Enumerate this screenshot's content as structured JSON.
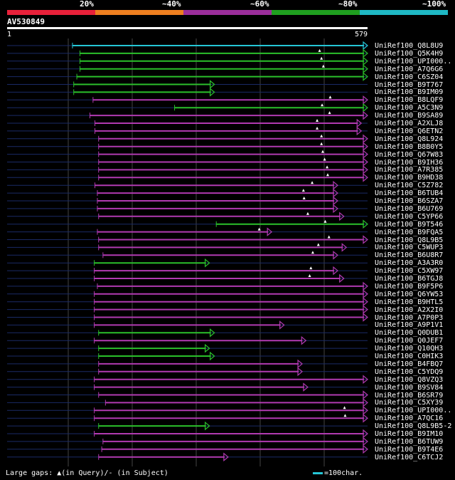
{
  "scale": {
    "ticks": [
      "20%",
      "~40%",
      "~60%",
      "~80%",
      "~100%"
    ],
    "colors": [
      "#e8213a",
      "#ee7f20",
      "#9b2e9b",
      "#1f9e1f",
      "#1fb8c4"
    ]
  },
  "query": {
    "name": "AV530849",
    "start": "1",
    "end": "579",
    "length": 579
  },
  "colors": {
    "blue": "#25c6d6",
    "green": "#2bc02b",
    "purple": "#b13ab1",
    "line": "#1a2a66",
    "grid": "#444444"
  },
  "hits": [
    {
      "name": "UniRef100_Q8L8U9",
      "s": 105,
      "e": 579,
      "c": "blue",
      "gap": null
    },
    {
      "name": "UniRef100_Q5K4H9",
      "s": 117,
      "e": 579,
      "c": "green",
      "gap": 502
    },
    {
      "name": "UniRef100_UPI000..",
      "s": 117,
      "e": 579,
      "c": "green",
      "gap": 505
    },
    {
      "name": "UniRef100_A7Q6G6",
      "s": 117,
      "e": 579,
      "c": "green",
      "gap": 508
    },
    {
      "name": "UniRef100_C6SZ04",
      "s": 112,
      "e": 579,
      "c": "green",
      "gap": null
    },
    {
      "name": "UniRef100_B9T767",
      "s": 107,
      "e": 333,
      "c": "green",
      "gap": null
    },
    {
      "name": "UniRef100_B9IM09",
      "s": 107,
      "e": 333,
      "c": "green",
      "gap": null
    },
    {
      "name": "UniRef100_B8LQF9",
      "s": 138,
      "e": 579,
      "c": "purple",
      "gap": 519
    },
    {
      "name": "UniRef100_A5C3N9",
      "s": 269,
      "e": 579,
      "c": "green",
      "gap": 506
    },
    {
      "name": "UniRef100_B9SA89",
      "s": 133,
      "e": 579,
      "c": "purple",
      "gap": 518
    },
    {
      "name": "UniRef100_A2XLJ8",
      "s": 141,
      "e": 569,
      "c": "purple",
      "gap": 498
    },
    {
      "name": "UniRef100_Q6ETN2",
      "s": 141,
      "e": 569,
      "c": "purple",
      "gap": 498
    },
    {
      "name": "UniRef100_Q8L924",
      "s": 147,
      "e": 579,
      "c": "purple",
      "gap": 505
    },
    {
      "name": "UniRef100_B8B0Y5",
      "s": 147,
      "e": 579,
      "c": "purple",
      "gap": 505
    },
    {
      "name": "UniRef100_Q67W83",
      "s": 147,
      "e": 579,
      "c": "purple",
      "gap": 507
    },
    {
      "name": "UniRef100_B9IH36",
      "s": 147,
      "e": 579,
      "c": "purple",
      "gap": 510
    },
    {
      "name": "UniRef100_A7R385",
      "s": 147,
      "e": 579,
      "c": "purple",
      "gap": 514
    },
    {
      "name": "UniRef100_B9HD38",
      "s": 147,
      "e": 579,
      "c": "purple",
      "gap": 515
    },
    {
      "name": "UniRef100_C5Z782",
      "s": 141,
      "e": 531,
      "c": "purple",
      "gap": 490
    },
    {
      "name": "UniRef100_B6TUB4",
      "s": 145,
      "e": 531,
      "c": "purple",
      "gap": 476
    },
    {
      "name": "UniRef100_B6SZA7",
      "s": 145,
      "e": 531,
      "c": "purple",
      "gap": 477
    },
    {
      "name": "UniRef100_B6U769",
      "s": 145,
      "e": 531,
      "c": "purple",
      "gap": null
    },
    {
      "name": "UniRef100_C5YP66",
      "s": 147,
      "e": 541,
      "c": "purple",
      "gap": 483
    },
    {
      "name": "UniRef100_B9T546",
      "s": 336,
      "e": 579,
      "c": "green",
      "gap": 511
    },
    {
      "name": "UniRef100_B9FQA5",
      "s": 145,
      "e": 425,
      "c": "purple",
      "gap": 405
    },
    {
      "name": "UniRef100_Q8L9B5",
      "s": 147,
      "e": 579,
      "c": "purple",
      "gap": 517
    },
    {
      "name": "UniRef100_C5WUP3",
      "s": 147,
      "e": 545,
      "c": "purple",
      "gap": 500
    },
    {
      "name": "UniRef100_B6U8R7",
      "s": 154,
      "e": 531,
      "c": "purple",
      "gap": 491
    },
    {
      "name": "UniRef100_A3A3R0",
      "s": 140,
      "e": 325,
      "c": "green",
      "gap": null
    },
    {
      "name": "UniRef100_C5XW97",
      "s": 140,
      "e": 531,
      "c": "purple",
      "gap": 488
    },
    {
      "name": "UniRef100_B6TGJ8",
      "s": 140,
      "e": 541,
      "c": "purple",
      "gap": 486
    },
    {
      "name": "UniRef100_B9F5P6",
      "s": 145,
      "e": 579,
      "c": "purple",
      "gap": null
    },
    {
      "name": "UniRef100_Q6YW53",
      "s": 140,
      "e": 579,
      "c": "purple",
      "gap": null
    },
    {
      "name": "UniRef100_B9HTL5",
      "s": 140,
      "e": 579,
      "c": "purple",
      "gap": null
    },
    {
      "name": "UniRef100_A2X2I0",
      "s": 140,
      "e": 579,
      "c": "purple",
      "gap": null
    },
    {
      "name": "UniRef100_A7P0P3",
      "s": 140,
      "e": 579,
      "c": "purple",
      "gap": null
    },
    {
      "name": "UniRef100_A9P1V1",
      "s": 140,
      "e": 445,
      "c": "purple",
      "gap": null
    },
    {
      "name": "UniRef100_Q0DUB1",
      "s": 147,
      "e": 333,
      "c": "green",
      "gap": null
    },
    {
      "name": "UniRef100_Q0JEF7",
      "s": 140,
      "e": 480,
      "c": "purple",
      "gap": null
    },
    {
      "name": "UniRef100_Q10QH3",
      "s": 147,
      "e": 325,
      "c": "green",
      "gap": null
    },
    {
      "name": "UniRef100_C0HIK3",
      "s": 147,
      "e": 333,
      "c": "green",
      "gap": null
    },
    {
      "name": "UniRef100_B4FBQ7",
      "s": 147,
      "e": 474,
      "c": "purple",
      "gap": null
    },
    {
      "name": "UniRef100_C5YDQ9",
      "s": 147,
      "e": 474,
      "c": "purple",
      "gap": null
    },
    {
      "name": "UniRef100_Q8VZQ3",
      "s": 140,
      "e": 579,
      "c": "purple",
      "gap": null
    },
    {
      "name": "UniRef100_B9SV84",
      "s": 140,
      "e": 483,
      "c": "purple",
      "gap": null
    },
    {
      "name": "UniRef100_B6SR79",
      "s": 147,
      "e": 579,
      "c": "purple",
      "gap": null
    },
    {
      "name": "UniRef100_C5XY39",
      "s": 158,
      "e": 579,
      "c": "purple",
      "gap": null
    },
    {
      "name": "UniRef100_UPI000..",
      "s": 140,
      "e": 579,
      "c": "purple",
      "gap": 542
    },
    {
      "name": "UniRef100_A7QC16",
      "s": 140,
      "e": 579,
      "c": "purple",
      "gap": 543
    },
    {
      "name": "UniRef100_Q8L9B5-2",
      "s": 147,
      "e": 325,
      "c": "green",
      "gap": null
    },
    {
      "name": "UniRef100_B9IM10",
      "s": 140,
      "e": 579,
      "c": "purple",
      "gap": null
    },
    {
      "name": "UniRef100_B6TUW9",
      "s": 154,
      "e": 579,
      "c": "purple",
      "gap": null
    },
    {
      "name": "UniRef100_B9T4E6",
      "s": 152,
      "e": 579,
      "c": "purple",
      "gap": null
    },
    {
      "name": "UniRef100_C6TCJ2",
      "s": 147,
      "e": 355,
      "c": "purple",
      "gap": null
    }
  ],
  "footer": {
    "text": "Large gaps: ▲(in Query)/- (in Subject)"
  },
  "legend": {
    "text": "=100char."
  }
}
